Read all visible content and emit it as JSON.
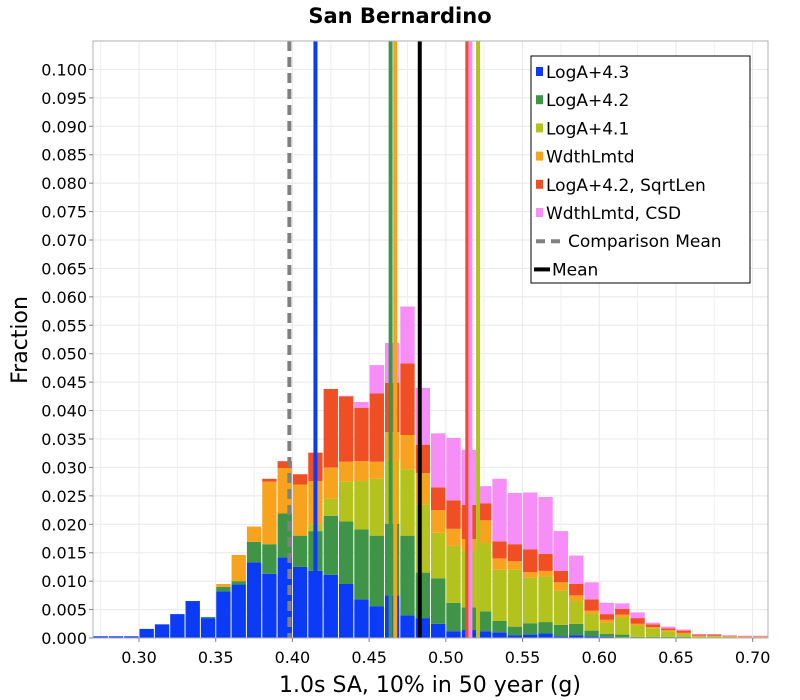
{
  "chart_data": {
    "type": "bar",
    "stacked": true,
    "title": "San Bernardino",
    "xlabel": "1.0s SA, 10% in 50 year (g)",
    "ylabel": "Fraction",
    "xlim": [
      0.27,
      0.71
    ],
    "ylim": [
      0,
      0.105
    ],
    "grid": true,
    "legend_position": "top-right",
    "bin_width": 0.01,
    "x": [
      0.275,
      0.285,
      0.295,
      0.305,
      0.315,
      0.325,
      0.335,
      0.345,
      0.355,
      0.365,
      0.375,
      0.385,
      0.395,
      0.405,
      0.415,
      0.425,
      0.435,
      0.445,
      0.455,
      0.465,
      0.475,
      0.485,
      0.495,
      0.505,
      0.515,
      0.525,
      0.535,
      0.545,
      0.555,
      0.565,
      0.575,
      0.585,
      0.595,
      0.605,
      0.615,
      0.625,
      0.635,
      0.645,
      0.655,
      0.665,
      0.675,
      0.685,
      0.695,
      0.705
    ],
    "xticks": [
      "0.30",
      "0.35",
      "0.40",
      "0.45",
      "0.50",
      "0.55",
      "0.60",
      "0.65",
      "0.70"
    ],
    "xtick_values": [
      0.3,
      0.35,
      0.4,
      0.45,
      0.5,
      0.55,
      0.6,
      0.65,
      0.7
    ],
    "yticks": [
      "0.000",
      "0.005",
      "0.010",
      "0.015",
      "0.020",
      "0.025",
      "0.030",
      "0.035",
      "0.040",
      "0.045",
      "0.050",
      "0.055",
      "0.060",
      "0.065",
      "0.070",
      "0.075",
      "0.080",
      "0.085",
      "0.090",
      "0.095",
      "0.100"
    ],
    "ytick_values": [
      0,
      0.005,
      0.01,
      0.015,
      0.02,
      0.025,
      0.03,
      0.035,
      0.04,
      0.045,
      0.05,
      0.055,
      0.06,
      0.065,
      0.07,
      0.075,
      0.08,
      0.085,
      0.09,
      0.095,
      0.1
    ],
    "series": [
      {
        "name": "LogA+4.3",
        "color": "#0b3bf5",
        "values": [
          0.0003,
          0.0003,
          0.0003,
          0.0016,
          0.0024,
          0.0042,
          0.0065,
          0.0035,
          0.0082,
          0.0094,
          0.0133,
          0.0113,
          0.0142,
          0.0125,
          0.0118,
          0.0111,
          0.0095,
          0.0068,
          0.0056,
          0.0075,
          0.004,
          0.0035,
          0.0025,
          0.0012,
          0.0014,
          0.0012,
          0.001,
          0.0005,
          0.0006,
          0.0008,
          0.0003,
          0.0005,
          0.0003,
          0.0002,
          0.0001,
          0.0,
          0.0,
          0.0,
          0.0,
          0.0,
          0.0,
          0.0,
          0.0,
          0.0
        ]
      },
      {
        "name": "LogA+4.2",
        "color": "#3f9448",
        "values": [
          0,
          0,
          0,
          0,
          0,
          0,
          0,
          0.0002,
          0.0008,
          0.0006,
          0.0036,
          0.0052,
          0.0077,
          0.0055,
          0.007,
          0.0104,
          0.011,
          0.0123,
          0.0124,
          0.0126,
          0.014,
          0.008,
          0.008,
          0.005,
          0.004,
          0.0035,
          0.002,
          0.0015,
          0.002,
          0.002,
          0.002,
          0.002,
          0.001,
          0.0005,
          0.0005,
          0.0002,
          0.0002,
          0.0002,
          0.0002,
          0.0,
          0.0,
          0.0,
          0.0,
          0.0
        ]
      },
      {
        "name": "LogA+4.1",
        "color": "#b3c21d",
        "values": [
          0,
          0,
          0,
          0,
          0,
          0,
          0,
          0,
          0,
          0,
          0,
          0,
          0,
          0,
          0.0012,
          0.003,
          0.007,
          0.0085,
          0.01,
          0.0111,
          0.0117,
          0.012,
          0.008,
          0.01,
          0.01,
          0.012,
          0.009,
          0.01,
          0.008,
          0.008,
          0.006,
          0.004,
          0.003,
          0.002,
          0.003,
          0.002,
          0.0015,
          0.001,
          0.0005,
          0.0003,
          0.0003,
          0.0002,
          0.0001,
          0.0001
        ]
      },
      {
        "name": "WdthLmtd",
        "color": "#f7a31e",
        "values": [
          0,
          0,
          0,
          0,
          0,
          0,
          0,
          0,
          0.0005,
          0.0046,
          0.0027,
          0.011,
          0.008,
          0.009,
          0.0076,
          0.0055,
          0.0035,
          0.0035,
          0.003,
          0.005,
          0.006,
          0.0055,
          0.004,
          0.003,
          0.002,
          0.004,
          0.002,
          0.0015,
          0.001,
          0.001,
          0.0015,
          0.001,
          0.0005,
          0.0005,
          0.0005,
          0.0003,
          0.0002,
          0.0002,
          0.0002,
          0.0001,
          0.0001,
          0.0001,
          0.0001,
          0.0001
        ]
      },
      {
        "name": "LogA+4.2, SqrtLen",
        "color": "#f04f23",
        "values": [
          0,
          0,
          0,
          0,
          0,
          0,
          0,
          0,
          0,
          0,
          0,
          0.0005,
          0.0012,
          0.0018,
          0.005,
          0.0138,
          0.0115,
          0.0094,
          0.012,
          0.0087,
          0.0126,
          0.005,
          0.004,
          0.005,
          0.006,
          0.003,
          0.003,
          0.003,
          0.004,
          0.003,
          0.002,
          0.002,
          0.002,
          0.001,
          0.001,
          0.001,
          0.0005,
          0.0003,
          0.0004,
          0.0002,
          0.0002,
          0.0001,
          0.0001,
          0.0001
        ]
      },
      {
        "name": "WdthLmtd, CSD",
        "color": "#f78ef7",
        "values": [
          0,
          0,
          0,
          0,
          0,
          0,
          0,
          0,
          0,
          0,
          0,
          0,
          0,
          0,
          0,
          0,
          0.0001,
          0.001,
          0.005,
          0.007,
          0.01,
          0.01,
          0.0095,
          0.011,
          0.0097,
          0.003,
          0.011,
          0.009,
          0.01,
          0.01,
          0.007,
          0.005,
          0.003,
          0.002,
          0.001,
          0.001,
          0.0003,
          0.0003,
          0.0002,
          0.0001,
          0.0001,
          0.0001,
          0.0001,
          0.0001
        ]
      }
    ],
    "vlines": [
      {
        "name": "Comparison Mean",
        "x": 0.398,
        "color": "#808080",
        "dashed": true
      },
      {
        "name": "Mean",
        "x": 0.483,
        "color": "#000000",
        "dashed": false
      },
      {
        "name": "LogA+4.3",
        "x": 0.415,
        "color": "#0b3bf5"
      },
      {
        "name": "LogA+4.2",
        "x": 0.464,
        "color": "#3f9448"
      },
      {
        "name": "WdthLmtd",
        "x": 0.467,
        "color": "#f7a31e"
      },
      {
        "name": "LogA+4.2, SqrtLen",
        "x": 0.514,
        "color": "#f04f23"
      },
      {
        "name": "WdthLmtd, CSD",
        "x": 0.516,
        "color": "#f78ef7"
      },
      {
        "name": "LogA+4.1",
        "x": 0.521,
        "color": "#b3c21d"
      }
    ],
    "legend": [
      {
        "label": "LogA+4.3",
        "color": "#0b3bf5",
        "kind": "box"
      },
      {
        "label": "LogA+4.2",
        "color": "#3f9448",
        "kind": "box"
      },
      {
        "label": "LogA+4.1",
        "color": "#b3c21d",
        "kind": "box"
      },
      {
        "label": "WdthLmtd",
        "color": "#f7a31e",
        "kind": "box"
      },
      {
        "label": "LogA+4.2, SqrtLen",
        "color": "#f04f23",
        "kind": "box"
      },
      {
        "label": "WdthLmtd, CSD",
        "color": "#f78ef7",
        "kind": "box"
      },
      {
        "label": "Comparison Mean",
        "color": "#808080",
        "kind": "dash"
      },
      {
        "label": "Mean",
        "color": "#000000",
        "kind": "line"
      }
    ]
  }
}
